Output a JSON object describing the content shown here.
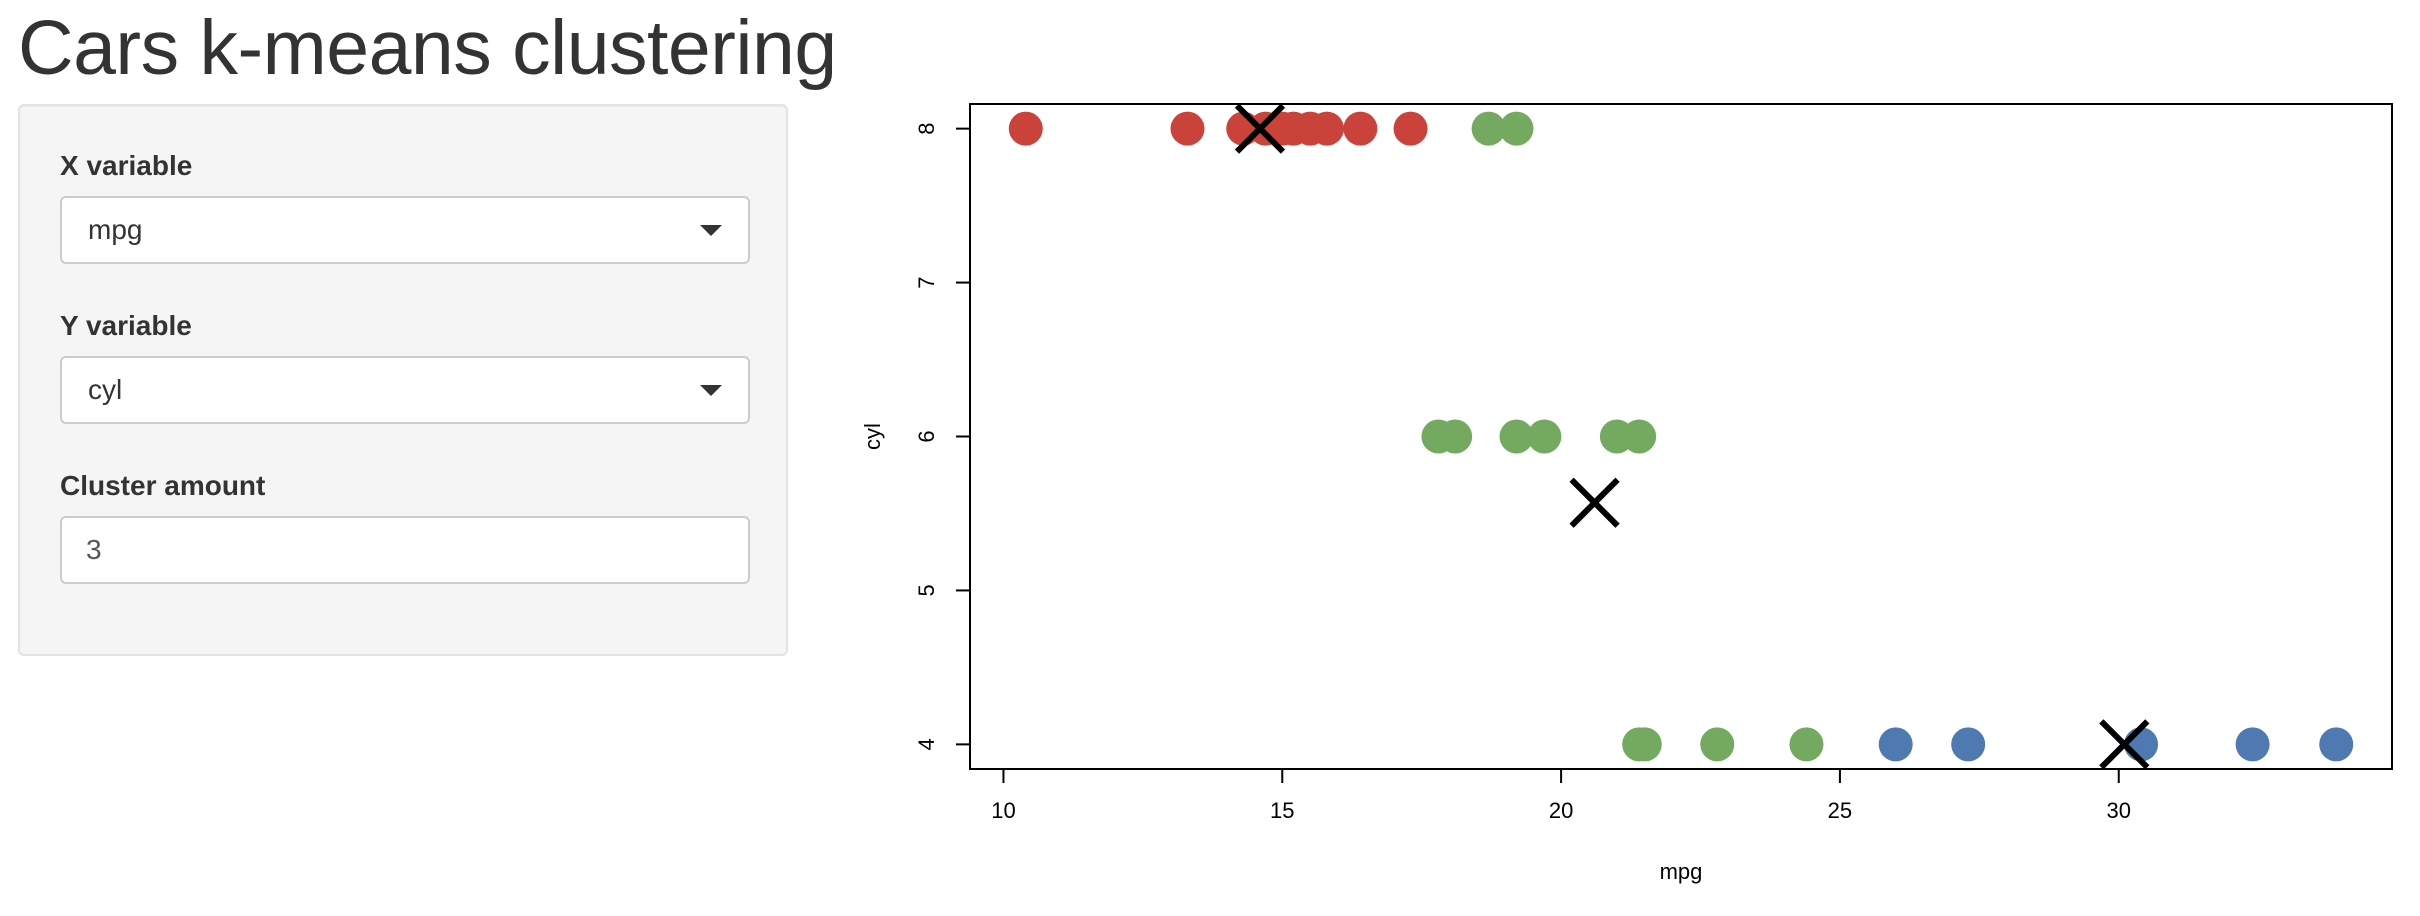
{
  "page": {
    "title": "Cars k-means clustering"
  },
  "sidebar": {
    "x_variable": {
      "label": "X variable",
      "value": "mpg"
    },
    "y_variable": {
      "label": "Y variable",
      "value": "cyl"
    },
    "cluster_amount": {
      "label": "Cluster amount",
      "value": "3"
    }
  },
  "chart_data": {
    "type": "scatter",
    "xlabel": "mpg",
    "ylabel": "cyl",
    "xlim": [
      9.4,
      34.9
    ],
    "ylim": [
      3.84,
      8.16
    ],
    "x_ticks": [
      10,
      15,
      20,
      25,
      30
    ],
    "y_ticks": [
      4,
      5,
      6,
      7,
      8
    ],
    "grid": false,
    "series": [
      {
        "color": "#c9433b",
        "x": [
          10.4,
          13.3,
          14.3,
          14.7,
          15.0,
          15.2,
          15.5,
          15.8,
          16.4,
          17.3
        ],
        "y": [
          8,
          8,
          8,
          8,
          8,
          8,
          8,
          8,
          8,
          8
        ]
      },
      {
        "color": "#74aa5f",
        "x": [
          18.7,
          19.2,
          17.8,
          18.1,
          19.2,
          19.7,
          21.0,
          21.4,
          21.4,
          21.5,
          22.8,
          24.4
        ],
        "y": [
          8,
          8,
          6,
          6,
          6,
          6,
          6,
          6,
          4,
          4,
          4,
          4
        ]
      },
      {
        "color": "#4e79b1",
        "x": [
          26.0,
          27.3,
          30.4,
          32.4,
          33.9
        ],
        "y": [
          4,
          4,
          4,
          4,
          4
        ]
      }
    ],
    "centers": {
      "color": "#000000",
      "x": [
        14.6,
        20.6,
        30.1
      ],
      "y": [
        8.0,
        5.57,
        4.0
      ]
    }
  }
}
